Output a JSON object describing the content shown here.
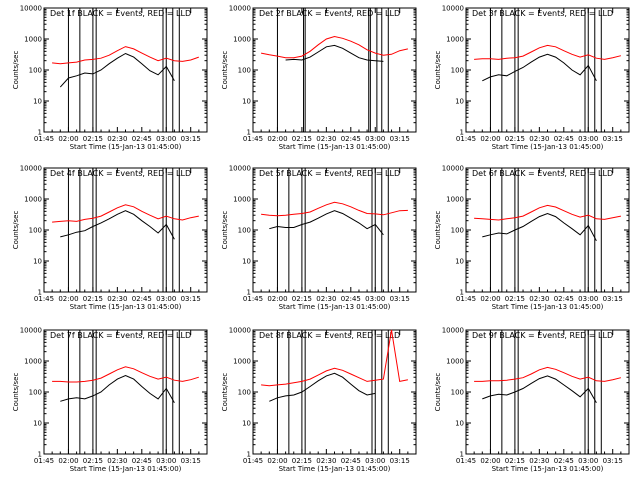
{
  "colors": {
    "events": "#000000",
    "lld": "#ff0000",
    "axis": "#000000",
    "background": "#ffffff"
  },
  "shared": {
    "xlabel": "Start Time (15-Jan-13 01:45:00)",
    "ylabel": "Counts/sec",
    "x_ticks": [
      "01:45",
      "02:00",
      "02:15",
      "02:30",
      "02:45",
      "03:00",
      "03:15"
    ],
    "x_tick_minutes": [
      0,
      15,
      30,
      45,
      60,
      75,
      90
    ],
    "xlim_minutes": [
      0,
      100
    ],
    "y_ticks": [
      "1",
      "10",
      "100",
      "1000",
      "10000"
    ],
    "y_tick_values": [
      1,
      10,
      100,
      1000,
      10000
    ],
    "ylim": [
      1,
      10000
    ],
    "y_scale": "log",
    "grid": false
  },
  "chart_data": [
    {
      "type": "line",
      "title": "Det 1f BLACK = Events, RED = LLD",
      "x": [
        5,
        10,
        15,
        20,
        25,
        30,
        35,
        40,
        45,
        50,
        55,
        60,
        65,
        70,
        75,
        80,
        85,
        90,
        95
      ],
      "series": [
        {
          "name": "Events",
          "color": "#000000",
          "values": [
            null,
            28,
            55,
            65,
            80,
            75,
            100,
            160,
            240,
            340,
            260,
            160,
            95,
            70,
            130,
            45,
            null,
            null,
            null
          ]
        },
        {
          "name": "LLD",
          "color": "#ff0000",
          "values": [
            170,
            160,
            170,
            180,
            210,
            220,
            240,
            300,
            420,
            570,
            480,
            350,
            260,
            200,
            240,
            200,
            190,
            210,
            260
          ]
        }
      ],
      "markers": [
        15,
        22,
        30,
        32,
        73,
        75,
        79,
        83
      ]
    },
    {
      "type": "line",
      "title": "Det 2f BLACK = Events, RED = LLD",
      "x": [
        5,
        10,
        15,
        20,
        25,
        30,
        35,
        40,
        45,
        50,
        55,
        60,
        65,
        70,
        75,
        80,
        85,
        90,
        95
      ],
      "series": [
        {
          "name": "Events",
          "color": "#000000",
          "values": [
            null,
            null,
            null,
            210,
            220,
            210,
            260,
            380,
            560,
            620,
            500,
            350,
            250,
            210,
            200,
            190,
            null,
            null,
            null
          ]
        },
        {
          "name": "LLD",
          "color": "#ff0000",
          "values": [
            350,
            310,
            280,
            250,
            250,
            280,
            400,
            650,
            1000,
            1200,
            1050,
            850,
            650,
            450,
            350,
            300,
            320,
            420,
            480
          ]
        }
      ],
      "markers": [
        15,
        31,
        32,
        71,
        72,
        76,
        79,
        83
      ]
    },
    {
      "type": "line",
      "title": "Det 3f BLACK = Events, RED = LLD",
      "x": [
        5,
        10,
        15,
        20,
        25,
        30,
        35,
        40,
        45,
        50,
        55,
        60,
        65,
        70,
        75,
        80,
        85,
        90,
        95
      ],
      "series": [
        {
          "name": "Events",
          "color": "#000000",
          "values": [
            null,
            45,
            60,
            70,
            65,
            90,
            120,
            180,
            260,
            320,
            260,
            170,
            100,
            70,
            140,
            45,
            null,
            null,
            null
          ]
        },
        {
          "name": "LLD",
          "color": "#ff0000",
          "values": [
            220,
            230,
            230,
            220,
            240,
            250,
            280,
            380,
            520,
            620,
            560,
            420,
            320,
            260,
            310,
            240,
            220,
            250,
            290
          ]
        }
      ],
      "markers": [
        15,
        22,
        30,
        32,
        73,
        75,
        79,
        83
      ]
    },
    {
      "type": "line",
      "title": "Det 4f BLACK = Events, RED = LLD",
      "x": [
        5,
        10,
        15,
        20,
        25,
        30,
        35,
        40,
        45,
        50,
        55,
        60,
        65,
        70,
        75,
        80,
        85,
        90,
        95
      ],
      "series": [
        {
          "name": "Events",
          "color": "#000000",
          "values": [
            null,
            60,
            70,
            85,
            95,
            130,
            170,
            230,
            320,
            420,
            320,
            200,
            130,
            80,
            150,
            50,
            null,
            null,
            null
          ]
        },
        {
          "name": "LLD",
          "color": "#ff0000",
          "values": [
            180,
            190,
            200,
            190,
            220,
            240,
            280,
            380,
            520,
            650,
            560,
            400,
            300,
            230,
            280,
            230,
            210,
            250,
            280
          ]
        }
      ],
      "markers": [
        15,
        22,
        30,
        32,
        73,
        75,
        79,
        83
      ]
    },
    {
      "type": "line",
      "title": "Det 5f BLACK = Events, RED = LLD",
      "x": [
        5,
        10,
        15,
        20,
        25,
        30,
        35,
        40,
        45,
        50,
        55,
        60,
        65,
        70,
        75,
        80,
        85,
        90,
        95
      ],
      "series": [
        {
          "name": "Events",
          "color": "#000000",
          "values": [
            null,
            110,
            130,
            120,
            120,
            150,
            180,
            240,
            330,
            420,
            340,
            240,
            170,
            110,
            150,
            70,
            null,
            null,
            null
          ]
        },
        {
          "name": "LLD",
          "color": "#ff0000",
          "values": [
            320,
            300,
            290,
            300,
            320,
            340,
            380,
            500,
            650,
            780,
            700,
            560,
            430,
            340,
            330,
            310,
            360,
            420,
            430
          ]
        }
      ],
      "markers": [
        15,
        22,
        30,
        32,
        73,
        75,
        79,
        83
      ]
    },
    {
      "type": "line",
      "title": "Det 6f BLACK = Events, RED = LLD",
      "x": [
        5,
        10,
        15,
        20,
        25,
        30,
        35,
        40,
        45,
        50,
        55,
        60,
        65,
        70,
        75,
        80,
        85,
        90,
        95
      ],
      "series": [
        {
          "name": "Events",
          "color": "#000000",
          "values": [
            null,
            60,
            70,
            80,
            75,
            100,
            130,
            190,
            270,
            340,
            270,
            170,
            110,
            70,
            140,
            45,
            null,
            null,
            null
          ]
        },
        {
          "name": "LLD",
          "color": "#ff0000",
          "values": [
            240,
            230,
            220,
            210,
            230,
            250,
            280,
            380,
            520,
            620,
            550,
            420,
            320,
            260,
            300,
            230,
            220,
            250,
            280
          ]
        }
      ],
      "markers": [
        15,
        22,
        30,
        32,
        73,
        75,
        79,
        83
      ]
    },
    {
      "type": "line",
      "title": "Det 7f BLACK = Events, RED = LLD",
      "x": [
        5,
        10,
        15,
        20,
        25,
        30,
        35,
        40,
        45,
        50,
        55,
        60,
        65,
        70,
        75,
        80,
        85,
        90,
        95
      ],
      "series": [
        {
          "name": "Events",
          "color": "#000000",
          "values": [
            null,
            50,
            60,
            65,
            60,
            75,
            100,
            170,
            260,
            340,
            260,
            150,
            90,
            60,
            130,
            45,
            null,
            null,
            null
          ]
        },
        {
          "name": "LLD",
          "color": "#ff0000",
          "values": [
            220,
            220,
            210,
            210,
            220,
            240,
            280,
            380,
            520,
            650,
            560,
            420,
            320,
            260,
            300,
            240,
            220,
            250,
            300
          ]
        }
      ],
      "markers": [
        15,
        22,
        30,
        32,
        73,
        75,
        79,
        83
      ]
    },
    {
      "type": "line",
      "title": "Det 8f BLACK = Events, RED = LLD",
      "x": [
        5,
        10,
        15,
        20,
        25,
        30,
        35,
        40,
        45,
        50,
        55,
        60,
        65,
        70,
        75,
        80,
        85,
        90,
        95
      ],
      "series": [
        {
          "name": "Events",
          "color": "#000000",
          "values": [
            null,
            50,
            65,
            75,
            80,
            100,
            150,
            230,
            330,
            400,
            300,
            180,
            110,
            80,
            90,
            null,
            null,
            null,
            null
          ]
        },
        {
          "name": "LLD",
          "color": "#ff0000",
          "values": [
            170,
            160,
            170,
            180,
            200,
            220,
            260,
            350,
            480,
            580,
            500,
            380,
            290,
            220,
            240,
            260,
            10000,
            220,
            250
          ]
        }
      ],
      "markers": [
        15,
        22,
        30,
        32,
        73,
        75,
        79,
        83
      ]
    },
    {
      "type": "line",
      "title": "Det 9f BLACK = Events, RED = LLD",
      "x": [
        5,
        10,
        15,
        20,
        25,
        30,
        35,
        40,
        45,
        50,
        55,
        60,
        65,
        70,
        75,
        80,
        85,
        90,
        95
      ],
      "series": [
        {
          "name": "Events",
          "color": "#000000",
          "values": [
            null,
            60,
            75,
            85,
            80,
            100,
            130,
            190,
            270,
            330,
            260,
            170,
            110,
            70,
            130,
            45,
            null,
            null,
            null
          ]
        },
        {
          "name": "LLD",
          "color": "#ff0000",
          "values": [
            220,
            220,
            230,
            230,
            240,
            260,
            290,
            380,
            520,
            620,
            540,
            420,
            320,
            260,
            300,
            230,
            220,
            250,
            290
          ]
        }
      ],
      "markers": [
        15,
        22,
        30,
        32,
        73,
        75,
        79,
        83
      ]
    }
  ]
}
